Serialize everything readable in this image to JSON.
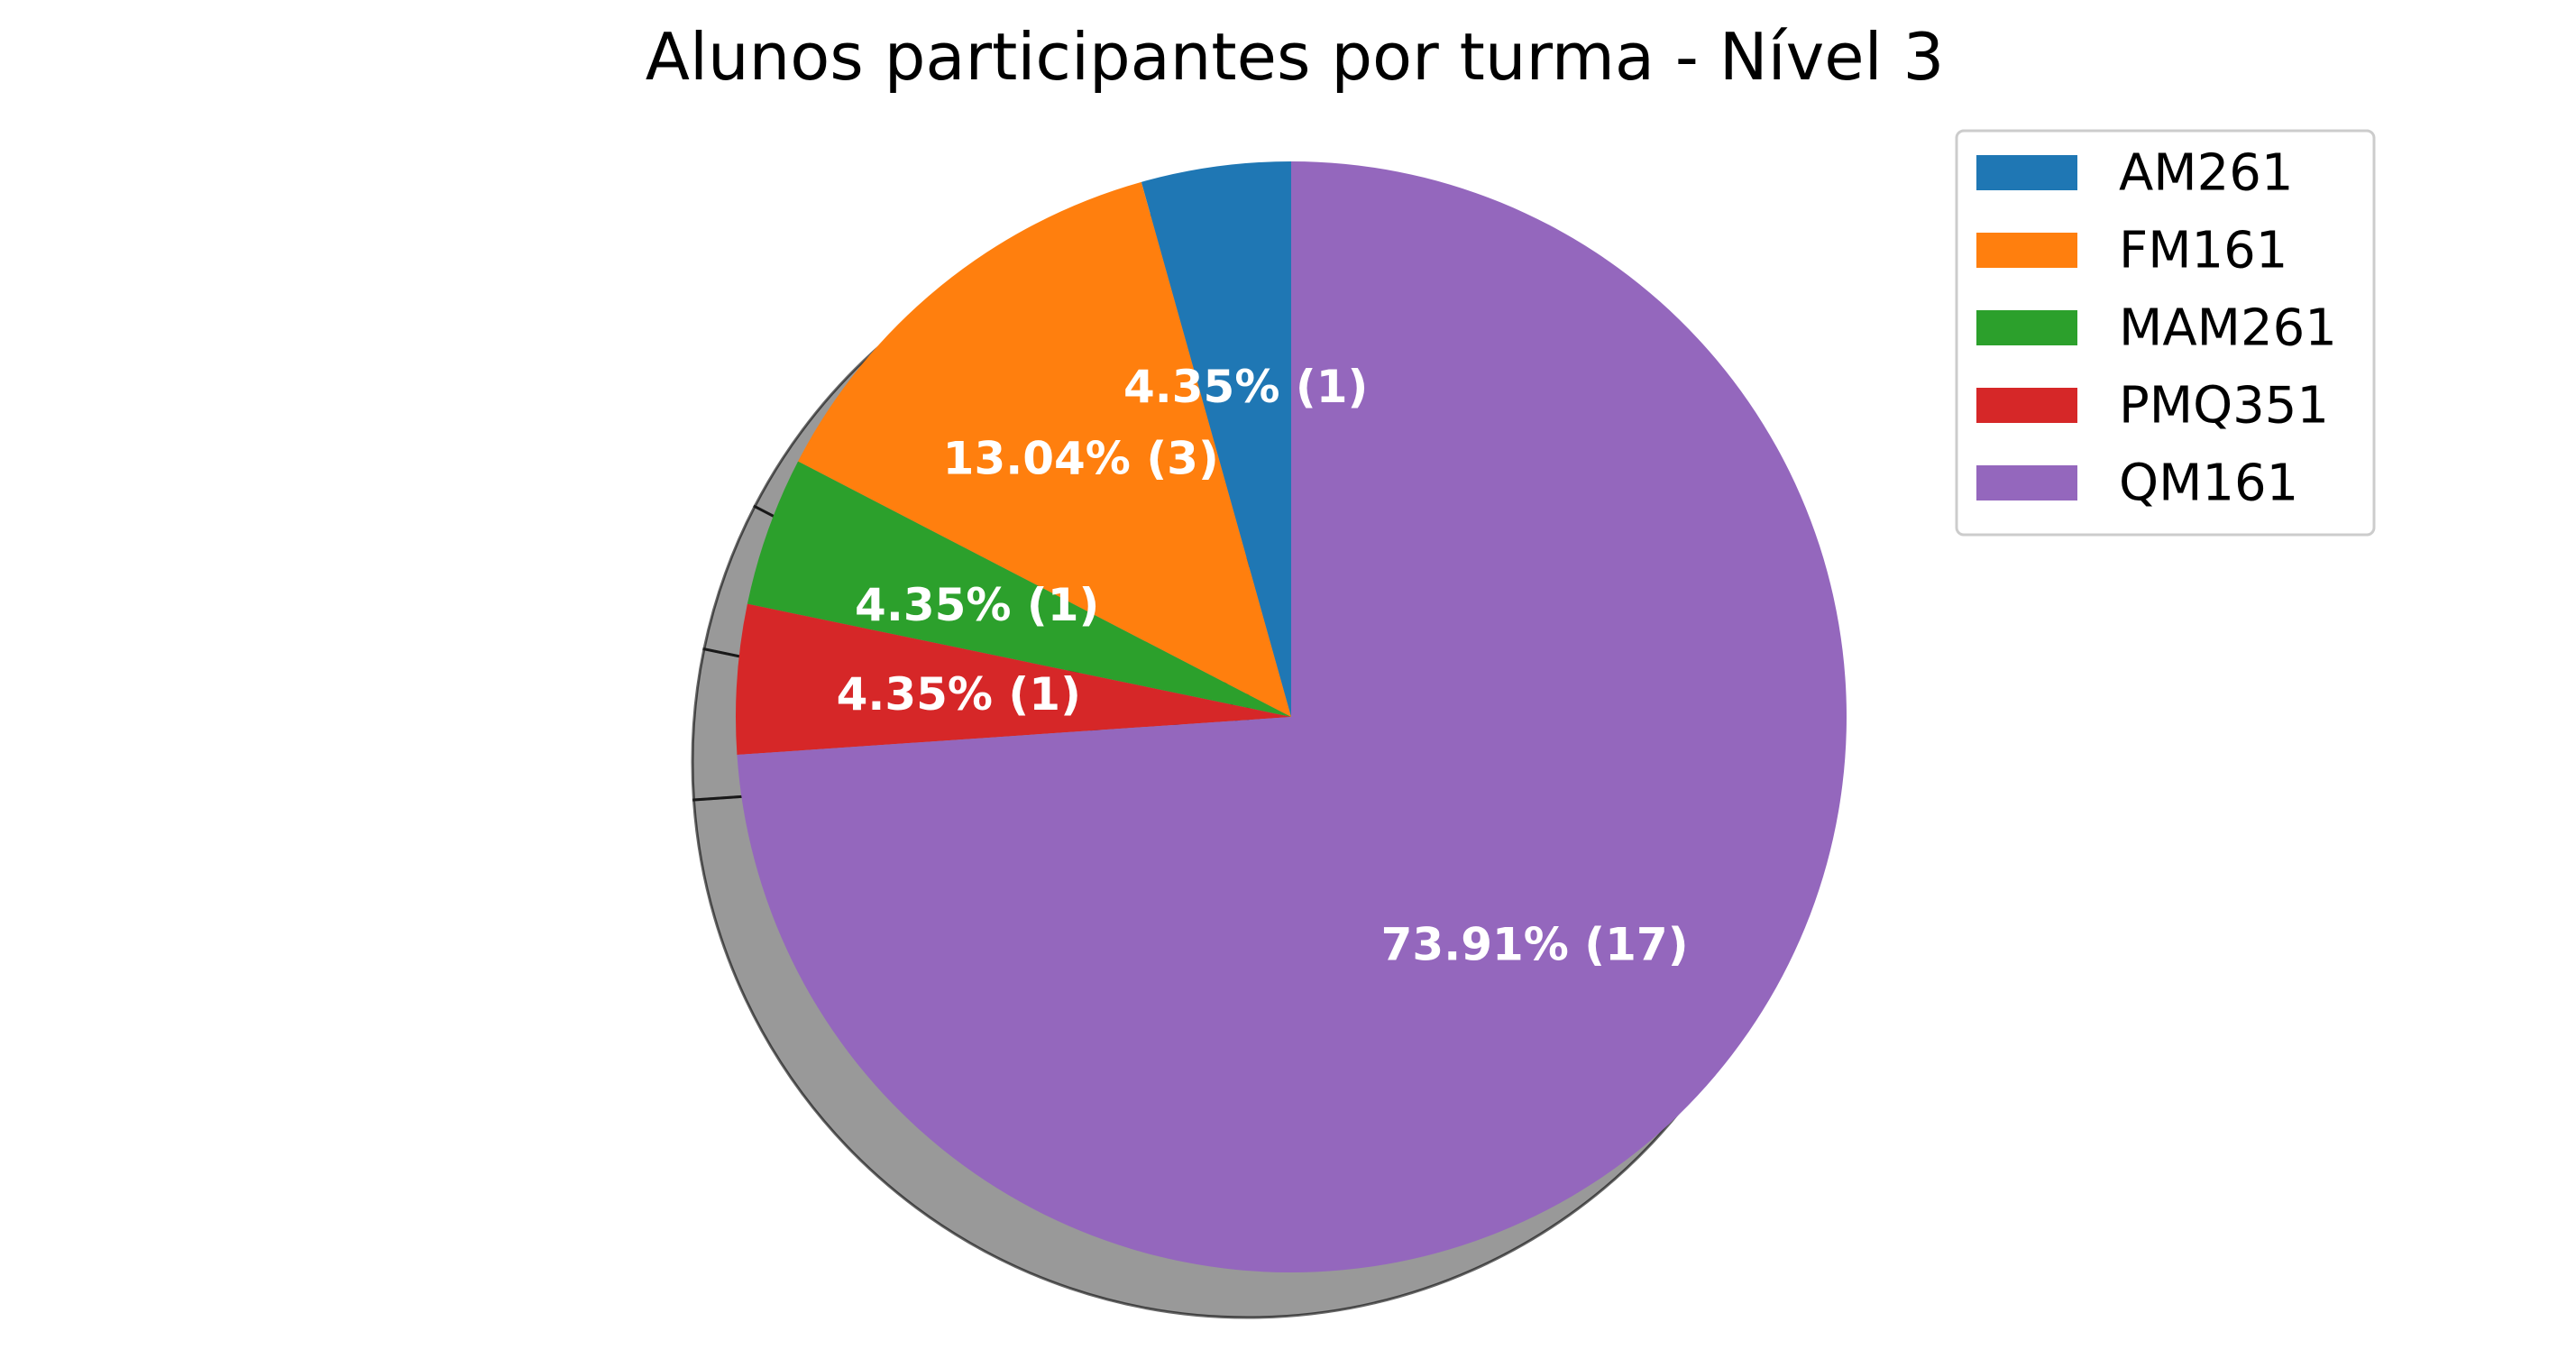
{
  "chart_data": {
    "type": "pie",
    "title": "Alunos participantes por turma - Nível 3",
    "categories": [
      "AM261",
      "FM161",
      "MAM261",
      "PMQ351",
      "QM161"
    ],
    "values": [
      1,
      3,
      1,
      1,
      17
    ],
    "percent_labels": [
      "4.35%",
      "13.04%",
      "4.35%",
      "4.35%",
      "73.91%"
    ],
    "count_labels": [
      "(1)",
      "(3)",
      "(1)",
      "(1)",
      "(17)"
    ],
    "colors": [
      "#1f77b4",
      "#ff7f0e",
      "#2ca02c",
      "#d62728",
      "#9467bd"
    ],
    "start_angle_deg": 90,
    "direction": "counterclockwise",
    "shadow": true,
    "legend_position": "upper-right",
    "legend_entries": [
      "AM261",
      "FM161",
      "MAM261",
      "PMQ351",
      "QM161"
    ]
  }
}
